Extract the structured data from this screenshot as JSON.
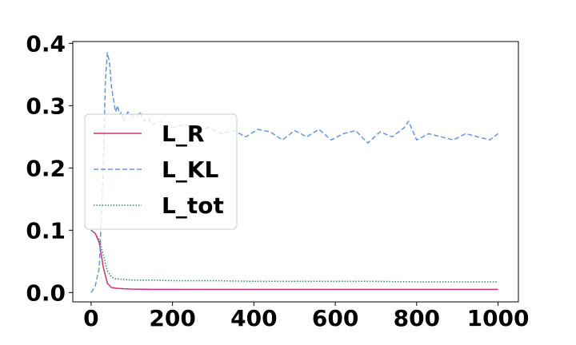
{
  "chart_data": {
    "type": "line",
    "title": "",
    "xlabel": "",
    "ylabel": "",
    "xlim": [
      -45,
      1050
    ],
    "ylim": [
      -0.015,
      0.403
    ],
    "x_ticks": [
      0,
      200,
      400,
      600,
      800,
      1000
    ],
    "x_tick_labels": [
      "0",
      "200",
      "400",
      "600",
      "800",
      "1000"
    ],
    "y_ticks": [
      0.0,
      0.1,
      0.2,
      0.3,
      0.4
    ],
    "y_tick_labels": [
      "0.0",
      "0.1",
      "0.2",
      "0.3",
      "0.4"
    ],
    "grid": false,
    "legend_position": "center-left",
    "legend_labels": [
      "L_R",
      "L_KL",
      "L_tot"
    ],
    "series": [
      {
        "name": "L_R",
        "color": "#d62f7a",
        "dash": "solid",
        "x": [
          0,
          10,
          20,
          30,
          40,
          50,
          60,
          80,
          100,
          150,
          200,
          300,
          400,
          500,
          600,
          700,
          800,
          900,
          1000
        ],
        "y": [
          0.1,
          0.095,
          0.08,
          0.04,
          0.015,
          0.008,
          0.007,
          0.006,
          0.0055,
          0.005,
          0.005,
          0.005,
          0.005,
          0.005,
          0.005,
          0.005,
          0.005,
          0.005,
          0.005
        ]
      },
      {
        "name": "L_KL",
        "color": "#6495ed",
        "dash": "dashed",
        "x": [
          0,
          10,
          20,
          30,
          35,
          40,
          45,
          50,
          55,
          60,
          65,
          70,
          75,
          80,
          90,
          100,
          110,
          120,
          130,
          140,
          150,
          170,
          200,
          230,
          260,
          290,
          320,
          350,
          380,
          410,
          440,
          470,
          500,
          530,
          560,
          590,
          620,
          650,
          680,
          710,
          740,
          770,
          780,
          800,
          830,
          860,
          890,
          920,
          950,
          980,
          1000
        ],
        "y": [
          0.0,
          0.01,
          0.04,
          0.2,
          0.34,
          0.385,
          0.37,
          0.33,
          0.31,
          0.29,
          0.3,
          0.285,
          0.29,
          0.275,
          0.29,
          0.285,
          0.28,
          0.29,
          0.275,
          0.28,
          0.27,
          0.275,
          0.265,
          0.27,
          0.26,
          0.265,
          0.255,
          0.26,
          0.25,
          0.262,
          0.258,
          0.245,
          0.26,
          0.25,
          0.262,
          0.245,
          0.255,
          0.26,
          0.24,
          0.258,
          0.25,
          0.265,
          0.275,
          0.245,
          0.255,
          0.25,
          0.245,
          0.255,
          0.25,
          0.245,
          0.255
        ]
      },
      {
        "name": "L_tot",
        "color": "#2e8b57",
        "dash": "dotted",
        "x": [
          0,
          10,
          20,
          30,
          40,
          50,
          60,
          80,
          100,
          150,
          200,
          300,
          400,
          500,
          600,
          700,
          800,
          900,
          1000
        ],
        "y": [
          0.1,
          0.095,
          0.085,
          0.06,
          0.035,
          0.025,
          0.022,
          0.021,
          0.02,
          0.02,
          0.019,
          0.019,
          0.018,
          0.018,
          0.018,
          0.018,
          0.017,
          0.017,
          0.017
        ]
      }
    ]
  }
}
